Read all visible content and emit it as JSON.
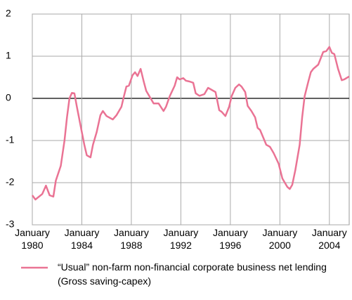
{
  "chart_data": {
    "type": "line",
    "x": [
      1980,
      1980.25,
      1980.8,
      1981.1,
      1981.4,
      1981.7,
      1981.9,
      1982.3,
      1982.6,
      1982.8,
      1983,
      1983.2,
      1983.4,
      1983.6,
      1984,
      1984.2,
      1984.4,
      1984.7,
      1984.9,
      1985.2,
      1985.5,
      1985.7,
      1986,
      1986.5,
      1986.8,
      1987.2,
      1987.4,
      1987.6,
      1987.8,
      1988.1,
      1988.3,
      1988.5,
      1988.75,
      1989,
      1989.2,
      1989.4,
      1989.8,
      1990.2,
      1990.6,
      1990.8,
      1991.1,
      1991.5,
      1991.7,
      1991.9,
      1992.2,
      1992.4,
      1992.7,
      1993,
      1993.2,
      1993.5,
      1993.9,
      1994.2,
      1994.5,
      1994.8,
      1995.1,
      1995.3,
      1995.6,
      1995.9,
      1996.1,
      1996.4,
      1996.7,
      1996.9,
      1997.2,
      1997.4,
      1997.7,
      1998,
      1998.2,
      1998.4,
      1998.9,
      1999.2,
      1999.5,
      1999.9,
      2000.2,
      2000.6,
      2000.8,
      2001,
      2001.25,
      2001.6,
      2001.8,
      2002,
      2002.3,
      2002.5,
      2002.7,
      2003.1,
      2003.3,
      2003.5,
      2003.75,
      2004,
      2004.2,
      2004.4,
      2004.7,
      2005,
      2005.2,
      2005.6
    ],
    "series": [
      {
        "name": "“Usual” non-farm non-financial corporate business net lending (Gross saving-capex)",
        "color": "#ea7394",
        "values": [
          -2.3,
          -2.4,
          -2.27,
          -2.07,
          -2.3,
          -2.33,
          -1.95,
          -1.6,
          -1.0,
          -0.45,
          0.0,
          0.13,
          0.12,
          -0.2,
          -0.8,
          -1.1,
          -1.35,
          -1.4,
          -1.1,
          -0.8,
          -0.4,
          -0.3,
          -0.42,
          -0.5,
          -0.4,
          -0.2,
          0.05,
          0.28,
          0.3,
          0.55,
          0.62,
          0.53,
          0.7,
          0.4,
          0.18,
          0.08,
          -0.12,
          -0.12,
          -0.3,
          -0.2,
          0.05,
          0.3,
          0.5,
          0.45,
          0.48,
          0.42,
          0.4,
          0.37,
          0.12,
          0.06,
          0.1,
          0.25,
          0.2,
          0.15,
          -0.28,
          -0.32,
          -0.42,
          -0.2,
          0.05,
          0.25,
          0.33,
          0.28,
          0.15,
          -0.18,
          -0.3,
          -0.45,
          -0.7,
          -0.75,
          -1.1,
          -1.15,
          -1.3,
          -1.55,
          -1.9,
          -2.1,
          -2.15,
          -2.05,
          -1.7,
          -1.1,
          -0.45,
          0.05,
          0.4,
          0.62,
          0.7,
          0.8,
          0.95,
          1.1,
          1.12,
          1.22,
          1.08,
          1.05,
          0.7,
          0.43,
          0.45,
          0.52
        ]
      }
    ],
    "xlim": [
      1980,
      2005.6
    ],
    "ylim": [
      -3,
      2
    ],
    "xticks": [
      {
        "value": 1980,
        "label": "January\n1980"
      },
      {
        "value": 1984,
        "label": "January\n1984"
      },
      {
        "value": 1988,
        "label": "January\n1988"
      },
      {
        "value": 1992,
        "label": "January\n1992"
      },
      {
        "value": 1996,
        "label": "January\n1996"
      },
      {
        "value": 2000,
        "label": "January\n2000"
      },
      {
        "value": 2004,
        "label": "January\n2004"
      }
    ],
    "yticks": [
      2,
      1,
      0,
      -1,
      -2,
      -3
    ],
    "grid": true
  }
}
